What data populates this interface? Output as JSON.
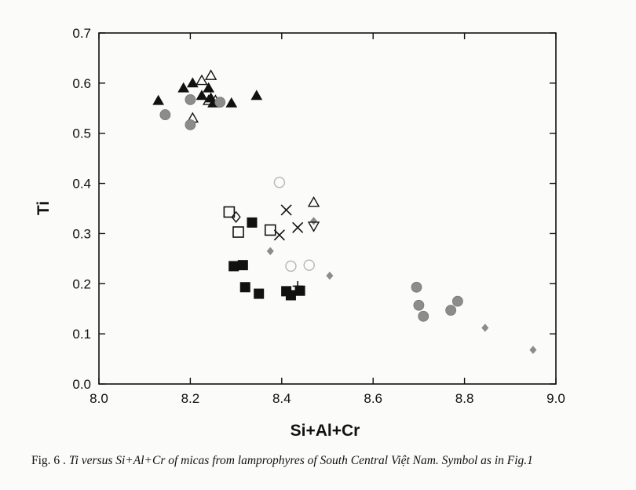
{
  "caption": {
    "figure_label": "Fig. 6 .",
    "text": "Ti versus Si+Al+Cr of micas from lamprophyres of South Central Việt Nam. Symbol as in Fig.1"
  },
  "chart_data": {
    "type": "scatter",
    "xlabel": "Si+Al+Cr",
    "ylabel": "Ti",
    "xlim": [
      8.0,
      9.0
    ],
    "ylim": [
      0.0,
      0.7
    ],
    "xticks": [
      "8.0",
      "8.2",
      "8.4",
      "8.6",
      "8.8",
      "9.0"
    ],
    "yticks": [
      "0.0",
      "0.1",
      "0.2",
      "0.3",
      "0.4",
      "0.5",
      "0.6",
      "0.7"
    ],
    "grid": false,
    "series": [
      {
        "marker": "triangle-filled",
        "color": "#111111",
        "points": [
          [
            8.13,
            0.565
          ],
          [
            8.185,
            0.59
          ],
          [
            8.205,
            0.6
          ],
          [
            8.225,
            0.575
          ],
          [
            8.24,
            0.59
          ],
          [
            8.245,
            0.57
          ],
          [
            8.25,
            0.56
          ],
          [
            8.29,
            0.56
          ],
          [
            8.345,
            0.575
          ]
        ]
      },
      {
        "marker": "triangle-open",
        "color": "#111111",
        "points": [
          [
            8.205,
            0.53
          ],
          [
            8.225,
            0.605
          ],
          [
            8.245,
            0.615
          ],
          [
            8.24,
            0.565
          ],
          [
            8.255,
            0.565
          ],
          [
            8.47,
            0.362
          ]
        ]
      },
      {
        "marker": "circle-filled-gray",
        "color": "#8c8c8c",
        "points": [
          [
            8.145,
            0.537
          ],
          [
            8.2,
            0.567
          ],
          [
            8.2,
            0.517
          ],
          [
            8.265,
            0.562
          ],
          [
            8.695,
            0.193
          ],
          [
            8.7,
            0.157
          ],
          [
            8.71,
            0.135
          ],
          [
            8.77,
            0.147
          ],
          [
            8.785,
            0.165
          ]
        ]
      },
      {
        "marker": "circle-open-light",
        "color": "#b5b5b5",
        "points": [
          [
            8.395,
            0.402
          ],
          [
            8.42,
            0.235
          ],
          [
            8.46,
            0.237
          ]
        ]
      },
      {
        "marker": "square-open",
        "color": "#111111",
        "points": [
          [
            8.285,
            0.343
          ],
          [
            8.305,
            0.303
          ],
          [
            8.375,
            0.307
          ]
        ]
      },
      {
        "marker": "square-filled",
        "color": "#111111",
        "points": [
          [
            8.335,
            0.322
          ],
          [
            8.295,
            0.235
          ],
          [
            8.315,
            0.237
          ],
          [
            8.32,
            0.193
          ],
          [
            8.35,
            0.18
          ],
          [
            8.41,
            0.185
          ],
          [
            8.42,
            0.177
          ],
          [
            8.44,
            0.186
          ]
        ]
      },
      {
        "marker": "diamond-open",
        "color": "#111111",
        "points": [
          [
            8.3,
            0.333
          ]
        ]
      },
      {
        "marker": "diamond-filled-gray",
        "color": "#8c8c8c",
        "points": [
          [
            8.375,
            0.265
          ],
          [
            8.47,
            0.325
          ],
          [
            8.505,
            0.216
          ],
          [
            8.845,
            0.112
          ],
          [
            8.95,
            0.068
          ]
        ]
      },
      {
        "marker": "cross",
        "color": "#111111",
        "points": [
          [
            8.395,
            0.297
          ],
          [
            8.41,
            0.347
          ],
          [
            8.435,
            0.312
          ]
        ]
      },
      {
        "marker": "triangle-down-open",
        "color": "#111111",
        "points": [
          [
            8.47,
            0.315
          ]
        ]
      },
      {
        "marker": "plus",
        "color": "#111111",
        "points": [
          [
            8.435,
            0.195
          ]
        ]
      }
    ]
  }
}
